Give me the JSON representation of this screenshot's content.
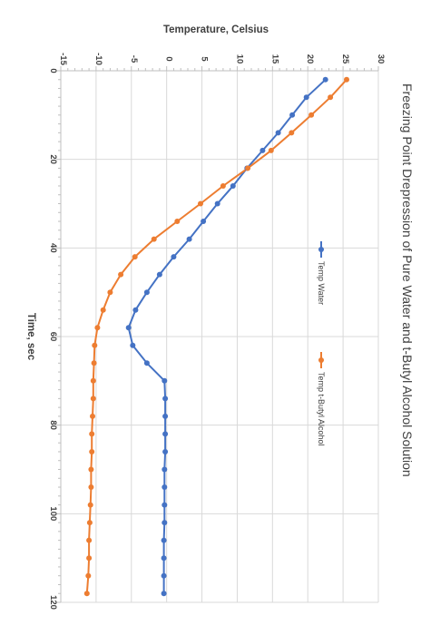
{
  "chart_data": {
    "type": "line",
    "title": "Freezing Point Drepression of Pure Water and t-Butyl Alcohol Solution",
    "xlabel": "Time, sec",
    "ylabel": "Temperature, Celsius",
    "xlim": [
      0,
      120
    ],
    "ylim": [
      -15,
      30
    ],
    "x_ticks": [
      "0",
      "20",
      "40",
      "60",
      "80",
      "100",
      "120"
    ],
    "y_ticks": [
      "-15",
      "-10",
      "-5",
      "0",
      "5",
      "10",
      "15",
      "20",
      "25",
      "30"
    ],
    "grid": true,
    "legend_position": "right",
    "x": [
      2,
      6,
      10,
      14,
      18,
      22,
      26,
      30,
      34,
      38,
      42,
      46,
      50,
      54,
      58,
      62,
      66,
      70,
      74,
      78,
      82,
      86,
      90,
      94,
      98,
      102,
      106,
      110,
      114,
      118
    ],
    "series": [
      {
        "name": "Temp Water",
        "color": "#4472c4",
        "values": [
          22.5,
          19.8,
          17.8,
          15.8,
          13.6,
          11.4,
          9.4,
          7.2,
          5.2,
          3.2,
          1.0,
          -1.0,
          -2.8,
          -4.4,
          -5.4,
          -4.8,
          -2.8,
          -0.3,
          -0.2,
          -0.2,
          -0.2,
          -0.2,
          -0.3,
          -0.3,
          -0.3,
          -0.3,
          -0.4,
          -0.4,
          -0.4,
          -0.4
        ]
      },
      {
        "name": "Temp t-Butyl Alcohol",
        "color": "#ed7d31",
        "values": [
          25.5,
          23.2,
          20.5,
          17.7,
          14.8,
          11.5,
          8.0,
          4.8,
          1.5,
          -1.8,
          -4.5,
          -6.5,
          -8.0,
          -9.0,
          -9.8,
          -10.2,
          -10.3,
          -10.4,
          -10.4,
          -10.5,
          -10.6,
          -10.6,
          -10.7,
          -10.7,
          -10.8,
          -10.9,
          -11.0,
          -11.0,
          -11.1,
          -11.3
        ]
      }
    ]
  }
}
